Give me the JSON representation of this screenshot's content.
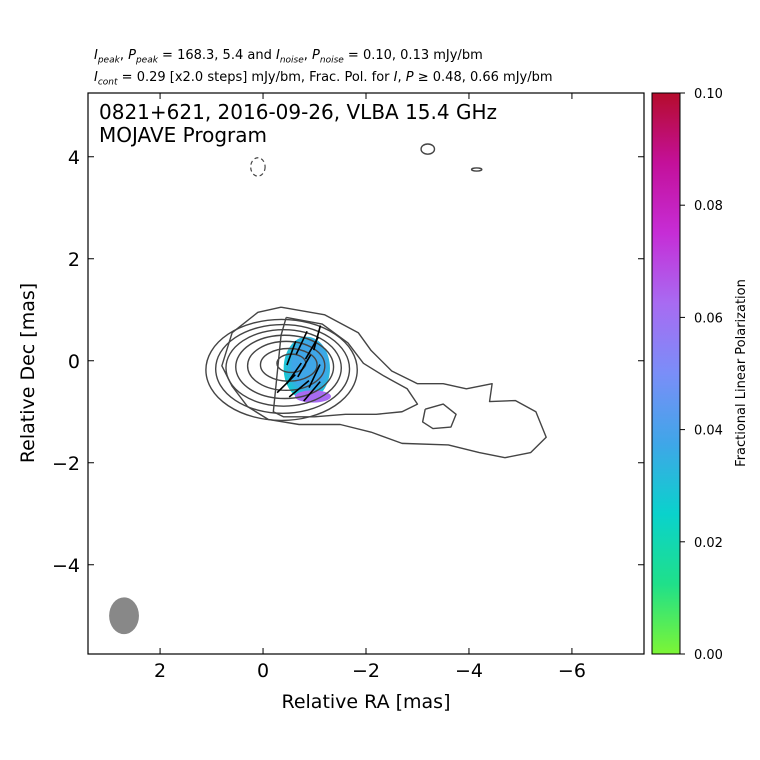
{
  "header": {
    "line1": {
      "i_sym": "I",
      "i_sub": "peak",
      "sep1": ", ",
      "p_sym": "P",
      "p_sub": "peak",
      "mid": " = 168.3, 5.4 and ",
      "i2_sym": "I",
      "i2_sub": "noise",
      "sep2": ", ",
      "p2_sym": "P",
      "p2_sub": "noise",
      "tail": " = 0.10, 0.13 mJy/bm"
    },
    "line2": {
      "i_sym": "I",
      "i_sub": "cont",
      "mid": " = 0.29 [x2.0 steps] mJy/bm, Frac. Pol. for ",
      "i2_sym": "I",
      "sep": ", ",
      "p_sym": "P",
      "tail": " ≥  0.48, 0.66 mJy/bm"
    }
  },
  "chart_data": {
    "type": "contour",
    "title": "0821+621, 2016-09-26, VLBA 15.4 GHz",
    "subtitle": "MOJAVE Program",
    "xlabel": "Relative RA [mas]",
    "ylabel": "Relative Dec [mas]",
    "xlim": [
      3.4,
      -7.4
    ],
    "ylim": [
      -5.75,
      5.25
    ],
    "x_ticks": [
      2,
      0,
      -2,
      -4,
      -6
    ],
    "x_tick_labels": [
      "2",
      "0",
      "−2",
      "−4",
      "−6"
    ],
    "y_ticks": [
      4,
      2,
      0,
      -2,
      -4
    ],
    "y_tick_labels": [
      "4",
      "2",
      "0",
      "−2",
      "−4"
    ],
    "colorbar": {
      "label": "Fractional Linear Polarization",
      "range": [
        0.0,
        0.1
      ],
      "ticks": [
        0.0,
        0.02,
        0.04,
        0.06,
        0.08,
        0.1
      ],
      "tick_labels": [
        "0.00",
        "0.02",
        "0.04",
        "0.06",
        "0.08",
        "0.10"
      ],
      "colors": [
        "#7cf535",
        "#1fe08a",
        "#0ad2cc",
        "#3fa6e8",
        "#7a8ef8",
        "#a86bf2",
        "#c62dd6",
        "#c4109a",
        "#b50c2c"
      ]
    },
    "contour_color": "#444444",
    "core_contours": [
      {
        "cx": 0.55,
        "cy": -0.05,
        "rx": 0.28,
        "ry": 0.18
      },
      {
        "cx": 0.5,
        "cy": -0.08,
        "rx": 0.55,
        "ry": 0.32
      },
      {
        "cx": 0.45,
        "cy": -0.1,
        "rx": 0.75,
        "ry": 0.48
      },
      {
        "cx": 0.42,
        "cy": -0.12,
        "rx": 0.95,
        "ry": 0.62
      },
      {
        "cx": 0.4,
        "cy": -0.14,
        "rx": 1.12,
        "ry": 0.75
      },
      {
        "cx": 0.38,
        "cy": -0.16,
        "rx": 1.3,
        "ry": 0.87
      },
      {
        "cx": 0.36,
        "cy": -0.18,
        "rx": 1.47,
        "ry": 0.99
      }
    ],
    "jet_contours": [
      [
        [
          0.35,
          1.05
        ],
        [
          1.2,
          0.9
        ],
        [
          1.85,
          0.55
        ],
        [
          2.1,
          0.2
        ],
        [
          2.5,
          -0.2
        ],
        [
          3.0,
          -0.45
        ],
        [
          3.5,
          -0.45
        ],
        [
          3.95,
          -0.55
        ],
        [
          4.45,
          -0.45
        ],
        [
          4.4,
          -0.8
        ],
        [
          4.9,
          -0.78
        ],
        [
          5.3,
          -1.0
        ],
        [
          5.5,
          -1.5
        ],
        [
          5.2,
          -1.8
        ],
        [
          4.7,
          -1.9
        ],
        [
          4.2,
          -1.8
        ],
        [
          3.6,
          -1.65
        ],
        [
          2.7,
          -1.62
        ],
        [
          2.1,
          -1.4
        ],
        [
          1.5,
          -1.25
        ],
        [
          0.7,
          -1.25
        ],
        [
          0.1,
          -1.15
        ],
        [
          -0.3,
          -0.9
        ],
        [
          -0.6,
          -0.5
        ],
        [
          -0.8,
          -0.1
        ],
        [
          -0.6,
          0.55
        ],
        [
          -0.1,
          0.95
        ],
        [
          0.35,
          1.05
        ]
      ],
      [
        [
          0.45,
          0.85
        ],
        [
          1.15,
          0.72
        ],
        [
          1.65,
          0.35
        ],
        [
          1.95,
          -0.05
        ],
        [
          2.35,
          -0.3
        ],
        [
          2.8,
          -0.55
        ],
        [
          3.0,
          -0.85
        ],
        [
          2.7,
          -1.0
        ],
        [
          2.2,
          -1.05
        ],
        [
          1.6,
          -1.05
        ],
        [
          1.0,
          -1.1
        ],
        [
          0.4,
          -1.1
        ],
        [
          0.2,
          -1.0
        ],
        [
          0.35,
          0.5
        ],
        [
          0.45,
          0.85
        ]
      ],
      [
        [
          3.15,
          -0.95
        ],
        [
          3.5,
          -0.85
        ],
        [
          3.75,
          -1.05
        ],
        [
          3.65,
          -1.3
        ],
        [
          3.3,
          -1.33
        ],
        [
          3.1,
          -1.2
        ],
        [
          3.15,
          -0.95
        ]
      ]
    ],
    "dashed_contours": [
      {
        "cx": 0.1,
        "cy": 3.8,
        "rx": 0.14,
        "ry": 0.18
      }
    ],
    "small_contours": [
      {
        "cx": -3.2,
        "cy": 4.15,
        "rx": 0.13,
        "ry": 0.1
      },
      {
        "cx": -4.15,
        "cy": 3.75,
        "rx": 0.1,
        "ry": 0.03
      }
    ],
    "polarization_region": {
      "cx": -0.85,
      "cy": -0.15,
      "rx": 0.45,
      "ry": 0.62,
      "frac_min": 0.02,
      "frac_max": 0.065
    },
    "evpa_ticks": [
      {
        "x": -0.55,
        "y": 0.15,
        "angle_deg": 70
      },
      {
        "x": -0.75,
        "y": 0.35,
        "angle_deg": 65
      },
      {
        "x": -0.95,
        "y": 0.25,
        "angle_deg": 60
      },
      {
        "x": -0.6,
        "y": -0.25,
        "angle_deg": 55
      },
      {
        "x": -0.8,
        "y": -0.1,
        "angle_deg": 60
      },
      {
        "x": -1.0,
        "y": -0.3,
        "angle_deg": 65
      },
      {
        "x": -0.7,
        "y": -0.55,
        "angle_deg": 40
      },
      {
        "x": -0.95,
        "y": -0.6,
        "angle_deg": 50
      },
      {
        "x": -1.05,
        "y": 0.45,
        "angle_deg": 75
      },
      {
        "x": -0.45,
        "y": -0.45,
        "angle_deg": 45
      }
    ],
    "beam": {
      "x": 2.7,
      "y": -5.0,
      "major": 0.72,
      "minor": 0.58,
      "pa_deg": 0,
      "color": "#888888"
    }
  }
}
